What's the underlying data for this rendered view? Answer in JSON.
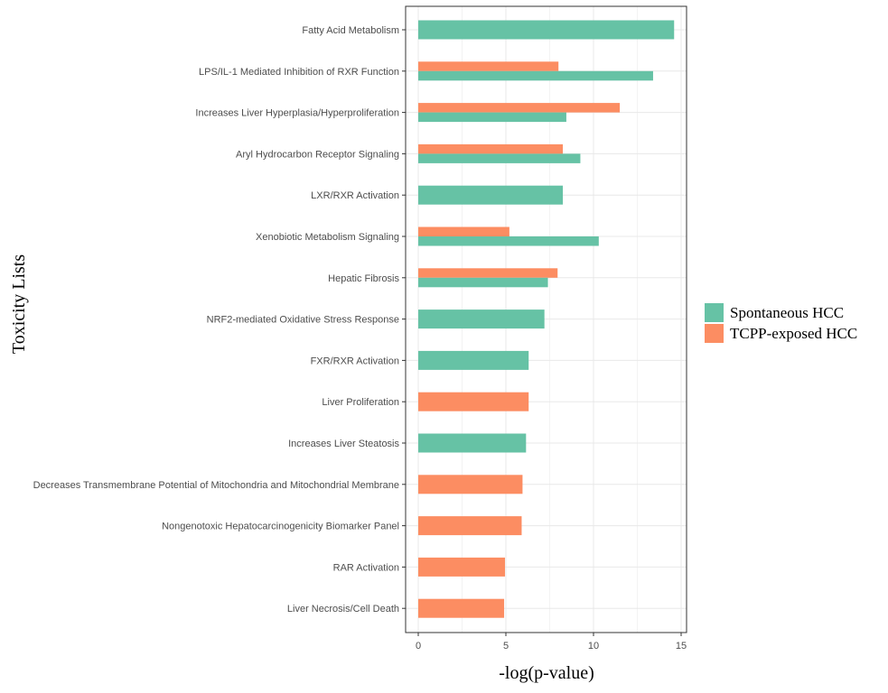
{
  "chart_data": {
    "type": "bar",
    "orientation": "horizontal",
    "xlabel": "-log(p-value)",
    "ylabel": "Toxicity Lists",
    "xlim": [
      0,
      15
    ],
    "xticks": [
      0,
      5,
      10,
      15
    ],
    "grid": true,
    "legend_position": "right",
    "categories": [
      "Fatty Acid Metabolism",
      "LPS/IL-1 Mediated Inhibition of RXR Function",
      "Increases Liver Hyperplasia/Hyperproliferation",
      "Aryl Hydrocarbon Receptor Signaling",
      "LXR/RXR Activation",
      "Xenobiotic Metabolism Signaling",
      "Hepatic Fibrosis",
      "NRF2-mediated Oxidative Stress Response",
      "FXR/RXR Activation",
      "Liver Proliferation",
      "Increases Liver Steatosis",
      "Decreases Transmembrane Potential of Mitochondria and Mitochondrial Membrane",
      "Nongenotoxic Hepatocarcinogenicity Biomarker Panel",
      "RAR Activation",
      "Liver Necrosis/Cell Death"
    ],
    "series": [
      {
        "name": "Spontaneous HCC",
        "color": "#66c2a5",
        "values": [
          14.6,
          13.4,
          8.45,
          9.25,
          8.25,
          10.3,
          7.4,
          7.2,
          6.3,
          null,
          6.15,
          null,
          null,
          null,
          null
        ]
      },
      {
        "name": "TCPP-exposed HCC",
        "color": "#fc8d62",
        "values": [
          null,
          8.0,
          11.5,
          8.25,
          null,
          5.2,
          7.95,
          null,
          null,
          6.3,
          null,
          5.95,
          5.9,
          4.95,
          4.9
        ]
      }
    ]
  }
}
